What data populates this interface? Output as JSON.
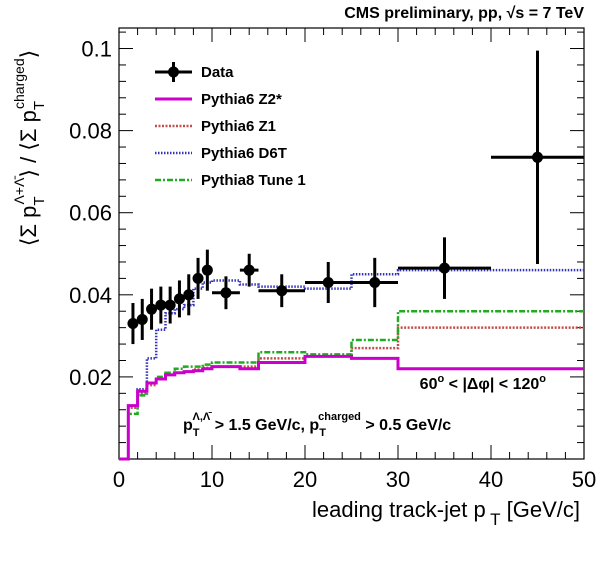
{
  "header": {
    "title": "CMS preliminary, pp, √s = 7 TeV"
  },
  "annotations": {
    "dphi_cut": "60° < |Δφ| < 120°",
    "pt_cut": "pTΛ,Λ̄ > 1.5 GeV/c, pTcharged > 0.5 GeV/c"
  },
  "colors": {
    "data": "#000000",
    "z2star": "#cc00cc",
    "z1": "#c0504d",
    "d6t": "#3333bb",
    "tune1": "#22aa22"
  },
  "chart_data": {
    "type": "line",
    "title": "CMS preliminary, pp, √s = 7 TeV",
    "xlabel": "leading track-jet p T [GeV/c]",
    "ylabel": "⟨Σ pTΛ+Λ̄⟩ / ⟨Σ pTcharged⟩",
    "xlim": [
      0,
      50
    ],
    "ylim": [
      0,
      0.105
    ],
    "xticks": [
      0,
      10,
      20,
      30,
      40,
      50
    ],
    "xtick_labels": [
      "0",
      "10",
      "20",
      "30",
      "40",
      "50"
    ],
    "yticks": [
      0.02,
      0.04,
      0.06,
      0.08,
      0.1
    ],
    "ytick_labels": [
      "0.02",
      "0.04",
      "0.06",
      "0.08",
      "0.1"
    ],
    "legend_position": "top-left",
    "data_points": {
      "name": "Data",
      "x": [
        1.5,
        2.5,
        3.5,
        4.5,
        5.5,
        6.5,
        7.5,
        8.5,
        9.5,
        11.5,
        14,
        17.5,
        22.5,
        27.5,
        35,
        45
      ],
      "xerr": [
        0.5,
        0.5,
        0.5,
        0.5,
        0.5,
        0.5,
        0.5,
        0.5,
        0.5,
        1.5,
        1,
        2.5,
        2.5,
        2.5,
        5,
        5
      ],
      "y": [
        0.033,
        0.034,
        0.0365,
        0.0375,
        0.0375,
        0.039,
        0.04,
        0.044,
        0.046,
        0.0405,
        0.046,
        0.041,
        0.043,
        0.043,
        0.0465,
        0.0735
      ],
      "yerr": [
        0.005,
        0.005,
        0.005,
        0.0045,
        0.0045,
        0.0045,
        0.005,
        0.005,
        0.005,
        0.004,
        0.004,
        0.004,
        0.005,
        0.006,
        0.0075,
        0.026
      ]
    },
    "bin_edges": [
      0,
      1,
      2,
      3,
      4,
      5,
      6,
      7,
      8,
      9,
      10,
      13,
      15,
      20,
      25,
      30,
      40,
      50
    ],
    "series": [
      {
        "name": "Pythia6 Z2*",
        "style": "solid",
        "values": [
          0.0,
          0.013,
          0.0165,
          0.0185,
          0.0195,
          0.0205,
          0.021,
          0.0213,
          0.0215,
          0.022,
          0.0225,
          0.022,
          0.0235,
          0.025,
          0.0245,
          0.022,
          0.022
        ]
      },
      {
        "name": "Pythia6 Z1",
        "style": "dotted-red",
        "values": [
          0.0,
          0.0125,
          0.016,
          0.018,
          0.0195,
          0.0205,
          0.021,
          0.0213,
          0.0218,
          0.0222,
          0.0225,
          0.0225,
          0.0245,
          0.025,
          0.027,
          0.032,
          0.032
        ]
      },
      {
        "name": "Pythia6 D6T",
        "style": "dotted-blue",
        "values": [
          0.0,
          0.013,
          0.017,
          0.0245,
          0.0315,
          0.0355,
          0.0365,
          0.0375,
          0.0415,
          0.043,
          0.0435,
          0.0425,
          0.042,
          0.0415,
          0.045,
          0.046,
          0.046
        ]
      },
      {
        "name": "Pythia8 Tune 1",
        "style": "dashdot-green",
        "values": [
          0.0,
          0.011,
          0.0155,
          0.0185,
          0.02,
          0.021,
          0.022,
          0.0225,
          0.0225,
          0.023,
          0.0235,
          0.0235,
          0.026,
          0.0255,
          0.029,
          0.036,
          0.036
        ]
      }
    ]
  }
}
